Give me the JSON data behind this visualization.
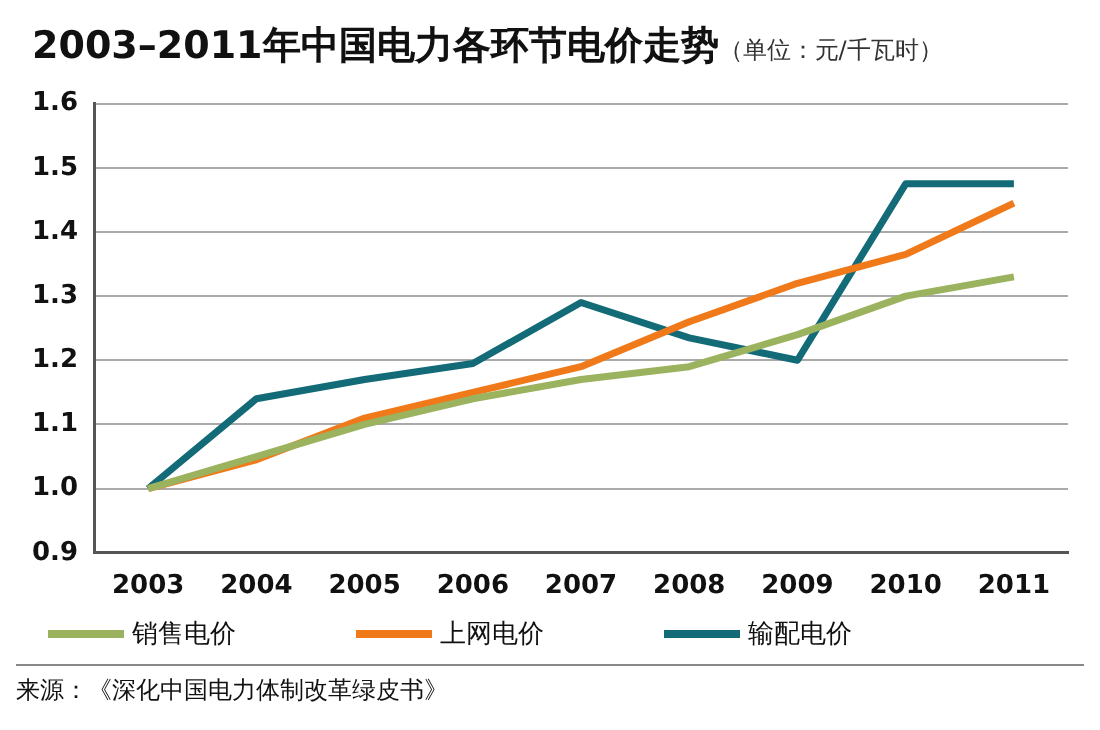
{
  "chart_data": {
    "type": "line",
    "title": "2003–2011年中国电力各环节电价走势",
    "subtitle": "（单位：元/千瓦时）",
    "categories": [
      "2003",
      "2004",
      "2005",
      "2006",
      "2007",
      "2008",
      "2009",
      "2010",
      "2011"
    ],
    "series": [
      {
        "name": "销售电价",
        "color": "#9bb25f",
        "values": [
          1.0,
          1.05,
          1.1,
          1.14,
          1.17,
          1.19,
          1.24,
          1.3,
          1.33
        ]
      },
      {
        "name": "上网电价",
        "color": "#f07a1a",
        "values": [
          1.0,
          1.045,
          1.11,
          1.15,
          1.19,
          1.26,
          1.32,
          1.365,
          1.445
        ]
      },
      {
        "name": "输配电价",
        "color": "#136b78",
        "values": [
          1.0,
          1.14,
          1.17,
          1.195,
          1.29,
          1.235,
          1.2,
          1.475,
          1.475
        ]
      }
    ],
    "ylim": [
      0.9,
      1.6
    ],
    "yticks": [
      {
        "value": 0.9,
        "label": "0.9"
      },
      {
        "value": 1.0,
        "label": "1.0"
      },
      {
        "value": 1.1,
        "label": "1.1"
      },
      {
        "value": 1.2,
        "label": "1.2"
      },
      {
        "value": 1.3,
        "label": "1.3"
      },
      {
        "value": 1.4,
        "label": "1.4"
      },
      {
        "value": 1.5,
        "label": "1.5"
      },
      {
        "value": 1.6,
        "label": "1.6"
      }
    ],
    "grid": "y",
    "legend": "bottom",
    "marker": "none",
    "line_style": "solid",
    "annotations": [
      "来源：《深化中国电力体制改革绿皮书》"
    ]
  }
}
